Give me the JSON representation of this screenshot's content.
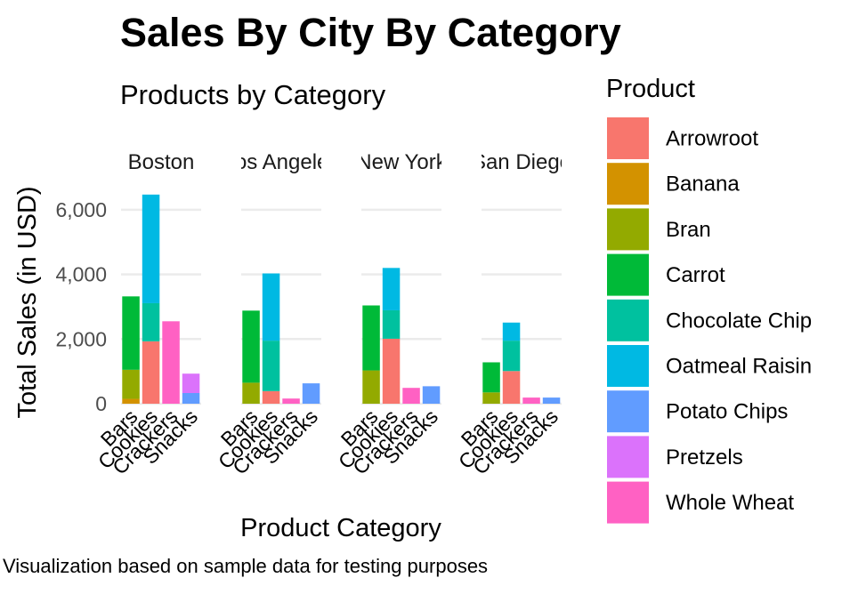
{
  "chart_data": {
    "type": "bar",
    "stacked": true,
    "faceted": true,
    "title": "Sales By City By Category",
    "subtitle": "Products by Category",
    "xlabel": "Product Category",
    "ylabel": "Total Sales (in USD)",
    "caption": "Visualization based on sample data for testing purposes",
    "legend_title": "Product",
    "legend_position": "right",
    "ylim": [
      0,
      6500
    ],
    "y_ticks": [
      0,
      2000,
      4000,
      6000
    ],
    "y_tick_labels": [
      "0",
      "2,000",
      "4,000",
      "6,000"
    ],
    "grid": true,
    "categories": [
      "Bars",
      "Cookies",
      "Crackers",
      "Snacks"
    ],
    "products": [
      {
        "name": "Arrowroot",
        "color": "#F8766D"
      },
      {
        "name": "Banana",
        "color": "#D39200"
      },
      {
        "name": "Bran",
        "color": "#93AA00"
      },
      {
        "name": "Carrot",
        "color": "#00BA38"
      },
      {
        "name": "Chocolate Chip",
        "color": "#00C19F"
      },
      {
        "name": "Oatmeal Raisin",
        "color": "#00B9E3"
      },
      {
        "name": "Potato Chips",
        "color": "#619CFF"
      },
      {
        "name": "Pretzels",
        "color": "#DB72FB"
      },
      {
        "name": "Whole Wheat",
        "color": "#FF61C3"
      }
    ],
    "facets": [
      {
        "city": "Boston",
        "bars": [
          {
            "category": "Bars",
            "segments": [
              {
                "product": "Banana",
                "value": 150
              },
              {
                "product": "Bran",
                "value": 900
              },
              {
                "product": "Carrot",
                "value": 2270
              }
            ]
          },
          {
            "category": "Cookies",
            "segments": [
              {
                "product": "Arrowroot",
                "value": 1930
              },
              {
                "product": "Chocolate Chip",
                "value": 1180
              },
              {
                "product": "Oatmeal Raisin",
                "value": 3360
              }
            ]
          },
          {
            "category": "Crackers",
            "segments": [
              {
                "product": "Whole Wheat",
                "value": 2550
              }
            ]
          },
          {
            "category": "Snacks",
            "segments": [
              {
                "product": "Potato Chips",
                "value": 330
              },
              {
                "product": "Pretzels",
                "value": 600
              }
            ]
          }
        ]
      },
      {
        "city": "Los Angeles",
        "bars": [
          {
            "category": "Bars",
            "segments": [
              {
                "product": "Bran",
                "value": 650
              },
              {
                "product": "Carrot",
                "value": 2230
              }
            ]
          },
          {
            "category": "Cookies",
            "segments": [
              {
                "product": "Arrowroot",
                "value": 390
              },
              {
                "product": "Chocolate Chip",
                "value": 1560
              },
              {
                "product": "Oatmeal Raisin",
                "value": 2080
              }
            ]
          },
          {
            "category": "Crackers",
            "segments": [
              {
                "product": "Whole Wheat",
                "value": 160
              }
            ]
          },
          {
            "category": "Snacks",
            "segments": [
              {
                "product": "Potato Chips",
                "value": 630
              }
            ]
          }
        ]
      },
      {
        "city": "New York",
        "bars": [
          {
            "category": "Bars",
            "segments": [
              {
                "product": "Bran",
                "value": 1030
              },
              {
                "product": "Carrot",
                "value": 2010
              }
            ]
          },
          {
            "category": "Cookies",
            "segments": [
              {
                "product": "Arrowroot",
                "value": 2010
              },
              {
                "product": "Chocolate Chip",
                "value": 880
              },
              {
                "product": "Oatmeal Raisin",
                "value": 1310
              }
            ]
          },
          {
            "category": "Crackers",
            "segments": [
              {
                "product": "Whole Wheat",
                "value": 490
              }
            ]
          },
          {
            "category": "Snacks",
            "segments": [
              {
                "product": "Potato Chips",
                "value": 540
              }
            ]
          }
        ]
      },
      {
        "city": "San Diego",
        "bars": [
          {
            "category": "Bars",
            "segments": [
              {
                "product": "Bran",
                "value": 350
              },
              {
                "product": "Carrot",
                "value": 930
              }
            ]
          },
          {
            "category": "Cookies",
            "segments": [
              {
                "product": "Arrowroot",
                "value": 1010
              },
              {
                "product": "Chocolate Chip",
                "value": 940
              },
              {
                "product": "Oatmeal Raisin",
                "value": 560
              }
            ]
          },
          {
            "category": "Crackers",
            "segments": [
              {
                "product": "Whole Wheat",
                "value": 190
              }
            ]
          },
          {
            "category": "Snacks",
            "segments": [
              {
                "product": "Potato Chips",
                "value": 190
              }
            ]
          }
        ]
      }
    ]
  }
}
